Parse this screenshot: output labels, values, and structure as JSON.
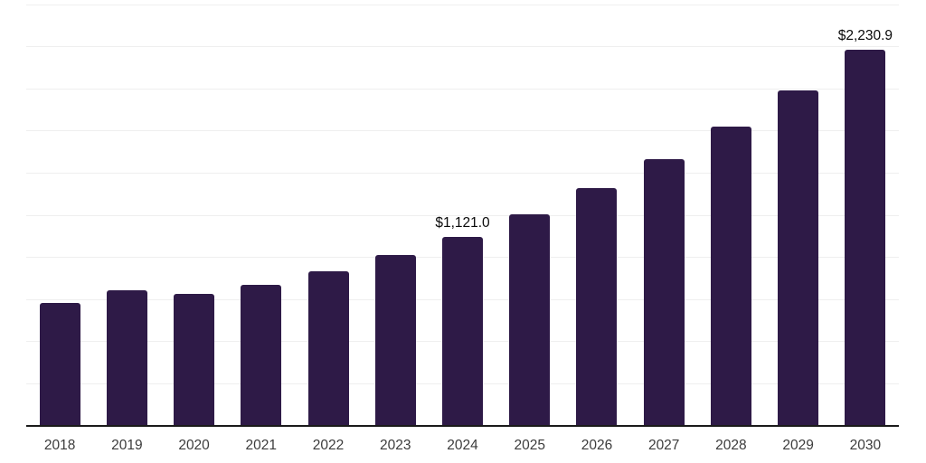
{
  "chart_data": {
    "type": "bar",
    "categories": [
      "2018",
      "2019",
      "2020",
      "2021",
      "2022",
      "2023",
      "2024",
      "2025",
      "2026",
      "2027",
      "2028",
      "2029",
      "2030"
    ],
    "values": [
      730,
      805,
      782,
      838,
      917,
      1015,
      1121.0,
      1257.2,
      1410.1,
      1581.5,
      1773.7,
      1989.3,
      2230.9
    ],
    "value_labels": [
      "",
      "",
      "",
      "",
      "",
      "",
      "$1,121.0",
      "",
      "",
      "",
      "",
      "",
      "$2,230.9"
    ],
    "labeled_points": [
      {
        "category": "2024",
        "label": "$1,121.0",
        "value": 1121.0
      },
      {
        "category": "2030",
        "label": "$2,230.9",
        "value": 2230.9
      }
    ],
    "ylim": [
      0,
      2500
    ],
    "grid_interval": 250,
    "grid": true,
    "legend": false,
    "y_tick_labels_visible": false,
    "note": "values without printed labels are estimated from gridline positions"
  },
  "colors": {
    "background": "#ffffff",
    "bar": "#2e1a47",
    "axis_line": "#1a1a1a",
    "gridline": "#efefef",
    "tick_label": "#3c3c3c",
    "value_label": "#0a0a0a"
  }
}
